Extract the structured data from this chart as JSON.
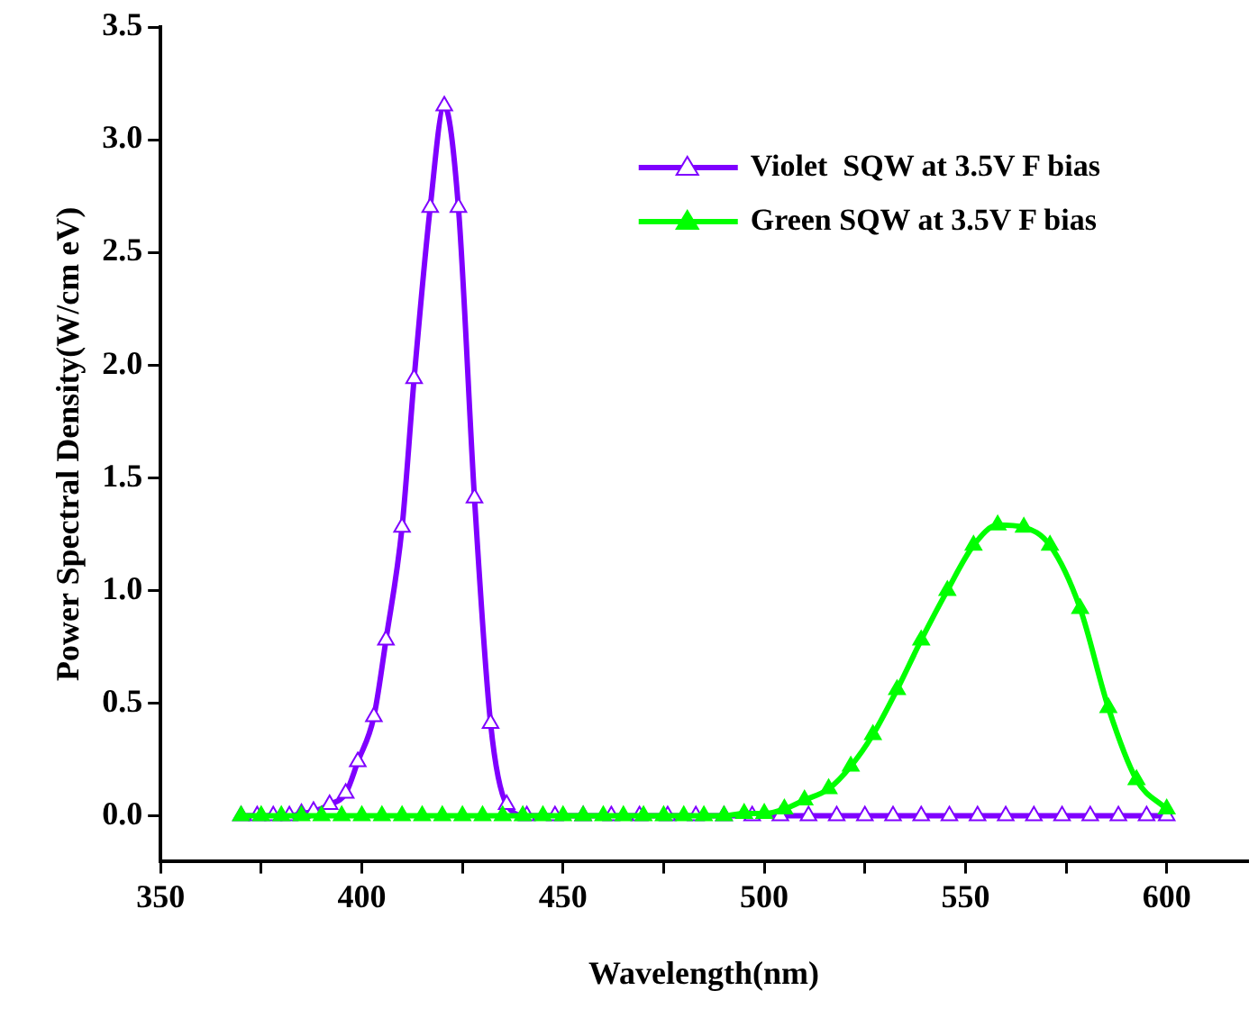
{
  "chart_data": {
    "type": "line",
    "xlabel": "Wavelength(nm)",
    "ylabel": "Power Spectral Density(W/cm eV)",
    "xlim": [
      350,
      620
    ],
    "xticks": [
      350,
      {
        "value": 375,
        "label": null
      },
      400,
      {
        "value": 425,
        "label": null
      },
      450,
      {
        "value": 475,
        "label": null
      },
      500,
      {
        "value": 525,
        "label": null
      },
      550,
      {
        "value": 575,
        "label": null
      },
      600
    ],
    "ylim": [
      -0.2,
      3.5
    ],
    "yticks": [
      {
        "value": 0,
        "label": "0.0"
      },
      {
        "value": 0.5,
        "label": "0.5"
      },
      {
        "value": 1,
        "label": "1.0"
      },
      {
        "value": 1.5,
        "label": "1.5"
      },
      {
        "value": 2,
        "label": "2.0"
      },
      {
        "value": 2.5,
        "label": "2.5"
      },
      {
        "value": 3,
        "label": "3.0"
      },
      {
        "value": 3.5,
        "label": "3.5"
      }
    ],
    "grid": false,
    "legend": "top right",
    "marker": "triangle",
    "line_style": "solid",
    "series": [
      {
        "name": "Violet  SQW at 3.5V F bias",
        "color": "#7f00ff",
        "x": [
          370,
          374,
          378,
          382,
          385,
          388,
          392,
          396,
          399,
          403,
          406,
          410,
          413,
          417,
          420.5,
          424,
          428,
          432,
          436,
          441,
          448,
          455,
          462,
          469,
          476,
          483,
          490,
          497,
          504,
          511,
          518,
          525,
          532,
          539,
          546,
          553,
          560,
          567,
          574,
          581,
          588,
          595,
          600
        ],
        "values": [
          0,
          0,
          0,
          0,
          0.01,
          0.02,
          0.05,
          0.1,
          0.24,
          0.44,
          0.78,
          1.28,
          1.94,
          2.7,
          3.15,
          2.7,
          1.41,
          0.41,
          0.05,
          0,
          0,
          0,
          0,
          0,
          0,
          0,
          0,
          0,
          0,
          0,
          0,
          0,
          0,
          0,
          0,
          0,
          0,
          0,
          0,
          0,
          0,
          0,
          0
        ]
      },
      {
        "name": "Green SQW at 3.5V F bias",
        "color": "#00ff00",
        "x": [
          370,
          375,
          380,
          385,
          390,
          395,
          400,
          405,
          410,
          415,
          420,
          425,
          430,
          435,
          440,
          445,
          450,
          455,
          460,
          465,
          470,
          475,
          480,
          485,
          490,
          495,
          500,
          505,
          510,
          516,
          521.5,
          527,
          533,
          539,
          545.5,
          552,
          558,
          564.5,
          571,
          578.5,
          585.5,
          592.5,
          600
        ],
        "values": [
          0,
          0,
          0,
          0,
          0,
          0,
          0,
          0,
          0,
          0,
          0,
          0,
          0,
          0,
          0,
          0,
          0,
          0,
          0,
          0,
          0,
          0,
          0,
          0,
          0,
          0.01,
          0.01,
          0.03,
          0.07,
          0.12,
          0.22,
          0.36,
          0.56,
          0.78,
          1.0,
          1.2,
          1.29,
          1.28,
          1.2,
          0.92,
          0.48,
          0.16,
          0.03
        ]
      }
    ]
  }
}
